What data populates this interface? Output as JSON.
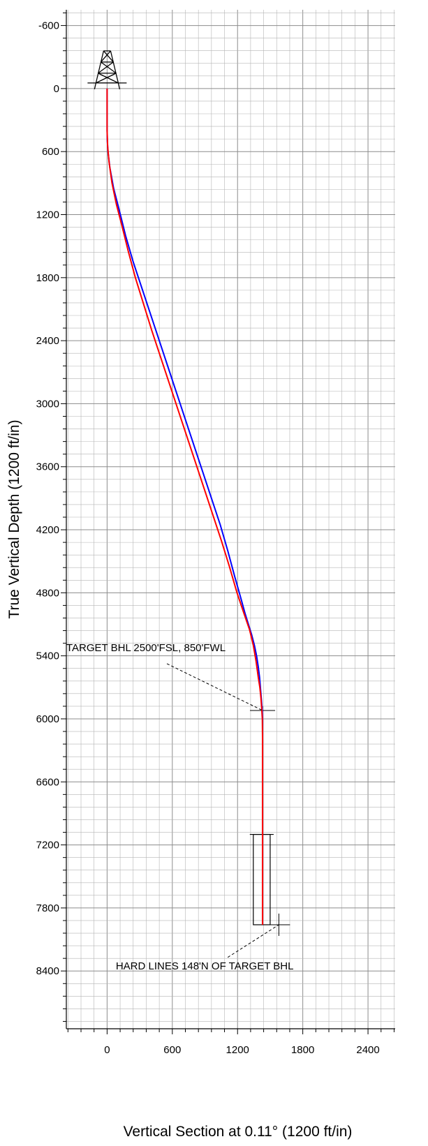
{
  "chart_data": {
    "type": "line",
    "xlabel": "Vertical Section at 0.11° (1200 ft/in)",
    "ylabel": "True Vertical Depth (1200 ft/in)",
    "xlim": [
      -375,
      2650
    ],
    "ylim": [
      -750,
      8950
    ],
    "y_inverted": true,
    "grid": true,
    "x_ticks": [
      "0",
      "600",
      "1200",
      "1800",
      "2400"
    ],
    "y_ticks": [
      "-600",
      "0",
      "600",
      "1200",
      "1800",
      "2400",
      "3000",
      "3600",
      "4200",
      "4800",
      "5400",
      "6000",
      "6600",
      "7200",
      "7800",
      "8400"
    ],
    "colors": {
      "plan": "#ff0000",
      "actual": "#0000ff",
      "grid": "#b4b4b4",
      "major_grid": "#8c8c8c"
    },
    "series": [
      {
        "color": "#0000ff",
        "x": [
          0,
          0,
          2,
          8,
          25,
          60,
          110,
          170,
          240,
          320,
          400,
          480,
          560,
          640,
          720,
          800,
          880,
          960,
          1040,
          1110,
          1175,
          1230,
          1270,
          1300,
          1330,
          1355,
          1375,
          1390,
          1402,
          1410,
          1418,
          1426,
          1430,
          1430,
          1430,
          1430,
          1430,
          1430
        ],
        "y": [
          0,
          400,
          500,
          600,
          750,
          950,
          1150,
          1400,
          1650,
          1900,
          2150,
          2400,
          2650,
          2900,
          3150,
          3400,
          3650,
          3900,
          4150,
          4400,
          4650,
          4850,
          5000,
          5100,
          5200,
          5300,
          5400,
          5500,
          5600,
          5700,
          5800,
          5900,
          6000,
          6500,
          7000,
          7500,
          7800,
          7960
        ]
      },
      {
        "color": "#ff0000",
        "x": [
          0,
          0,
          5,
          18,
          45,
          85,
          135,
          195,
          260,
          335,
          410,
          490,
          570,
          650,
          730,
          810,
          890,
          970,
          1050,
          1125,
          1195,
          1260,
          1310,
          1345,
          1370,
          1390,
          1405,
          1415,
          1422,
          1428,
          1430,
          1430,
          1430,
          1430,
          1430,
          1430,
          1430
        ],
        "y": [
          0,
          400,
          550,
          700,
          900,
          1100,
          1300,
          1550,
          1800,
          2050,
          2300,
          2550,
          2800,
          3050,
          3300,
          3550,
          3800,
          4050,
          4300,
          4550,
          4800,
          5000,
          5150,
          5300,
          5450,
          5600,
          5700,
          5800,
          5900,
          6000,
          6200,
          6500,
          7000,
          7500,
          7800,
          7900,
          7960
        ]
      }
    ],
    "target_marker": {
      "x": 1430,
      "y": 5920
    },
    "hard_lines_box": {
      "x1": 1345,
      "x2": 1500,
      "y1": 7100,
      "y2": 7960
    },
    "hard_lines_marker": {
      "x": 1580,
      "y": 7960
    },
    "annotations": [
      {
        "text": "TARGET BHL 2500'FSL, 850'FWL",
        "x": -375,
        "y": 5355,
        "leader_from": [
          550,
          5475
        ],
        "leader_to": [
          1430,
          5920
        ]
      },
      {
        "text": "HARD LINES 148'N OF TARGET BHL",
        "x": 80,
        "y": 8385,
        "leader_from": [
          1110,
          8270
        ],
        "leader_to": [
          1580,
          7960
        ]
      }
    ]
  }
}
